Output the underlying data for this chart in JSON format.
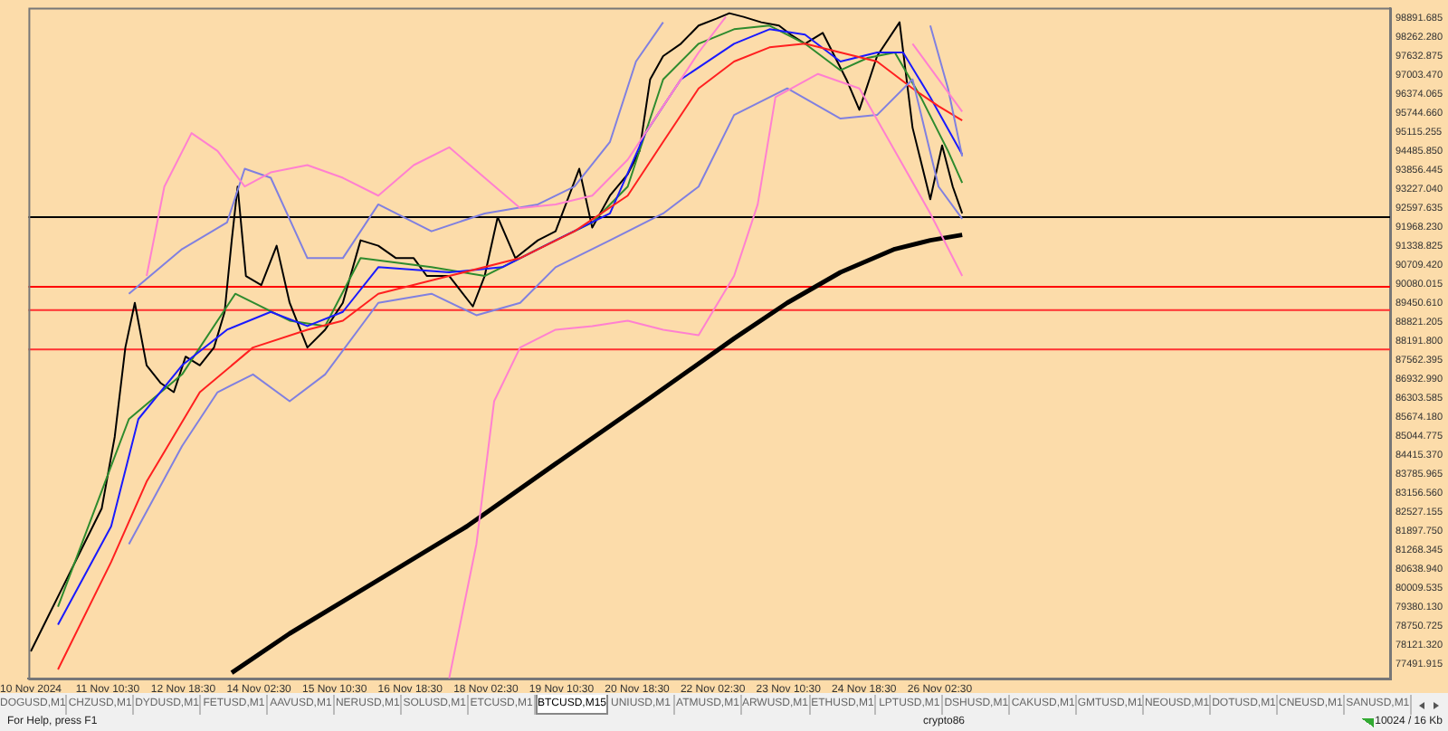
{
  "chart_data": {
    "type": "line",
    "xlim": [
      "2024-11-10T01:00",
      "2024-12-04T01:00"
    ],
    "ylim": [
      77010,
      99220
    ],
    "xticks": [
      {
        "value": "2024-11-10T02:00",
        "label": "10 Nov 2024"
      },
      {
        "value": "2024-11-11T10:30",
        "label": "11 Nov 10:30"
      },
      {
        "value": "2024-11-12T18:30",
        "label": "12 Nov 18:30"
      },
      {
        "value": "2024-11-14T02:30",
        "label": "14 Nov 02:30"
      },
      {
        "value": "2024-11-15T10:30",
        "label": "15 Nov 10:30"
      },
      {
        "value": "2024-11-16T18:30",
        "label": "16 Nov 18:30"
      },
      {
        "value": "2024-11-18T02:30",
        "label": "18 Nov 02:30"
      },
      {
        "value": "2024-11-19T10:30",
        "label": "19 Nov 10:30"
      },
      {
        "value": "2024-11-20T18:30",
        "label": "20 Nov 18:30"
      },
      {
        "value": "2024-11-22T02:30",
        "label": "22 Nov 02:30"
      },
      {
        "value": "2024-11-23T10:30",
        "label": "23 Nov 10:30"
      },
      {
        "value": "2024-11-24T18:30",
        "label": "24 Nov 18:30"
      },
      {
        "value": "2024-11-26T02:30",
        "label": "26 Nov 02:30"
      }
    ],
    "yticks": [
      77491.915,
      {
        "value": 78121.32,
        "label": "78121.320"
      },
      78750.725,
      {
        "value": 79380.13,
        "label": "79380.130"
      },
      80009.535,
      {
        "value": 80638.94,
        "label": "80638.940"
      },
      81268.345,
      {
        "value": 81897.75,
        "label": "81897.750"
      },
      82527.155,
      {
        "value": 83156.56,
        "label": "83156.560"
      },
      83785.965,
      {
        "value": 84415.37,
        "label": "84415.370"
      },
      85044.775,
      {
        "value": 85674.18,
        "label": "85674.180"
      },
      86303.585,
      {
        "value": 86932.99,
        "label": "86932.990"
      },
      87562.395,
      {
        "value": 88191.8,
        "label": "88191.800"
      },
      88821.205,
      {
        "value": 89450.61,
        "label": "89450.610"
      },
      90080.015,
      {
        "value": 90709.42,
        "label": "90709.420"
      },
      91338.825,
      {
        "value": 91968.23,
        "label": "91968.230"
      },
      92597.635,
      {
        "value": 93227.04,
        "label": "93227.040"
      },
      93856.445,
      {
        "value": 94485.85,
        "label": "94485.850"
      },
      95115.255,
      {
        "value": 95744.66,
        "label": "95744.660"
      },
      96374.065,
      {
        "value": 97003.47,
        "label": "97003.470"
      },
      97632.875,
      {
        "value": 98262.28,
        "label": "98262.280"
      },
      98891.685
    ],
    "grid": false,
    "legend": false,
    "marker": "none",
    "line_style": "solid",
    "series": [
      {
        "color": "#ff80d0",
        "x": [
          "2024-11-12T03:00",
          "2024-11-12T10:30",
          "2024-11-12T22:00",
          "2024-11-13T09:00",
          "2024-11-13T20:30",
          "2024-11-14T07:30",
          "2024-11-14T23:00",
          "2024-11-15T14:00",
          "2024-11-16T05:00",
          "2024-11-16T20:00",
          "2024-11-17T11:00",
          "2024-11-18T02:00",
          "2024-11-18T17:00",
          "2024-11-19T08:00",
          "2024-11-19T23:30",
          "2024-11-20T14:30",
          "2024-11-21T05:30",
          "2024-11-21T20:30",
          "2024-11-22T08:00",
          "2024-11-24T04:00",
          "2024-11-25T15:00",
          "2024-11-26T02:00",
          "2024-11-26T12:00"
        ],
        "values": [
          90340,
          93300,
          95070,
          94480,
          93300,
          93770,
          94010,
          93590,
          93000,
          94010,
          94600,
          93590,
          92590,
          92710,
          93000,
          94190,
          95960,
          97740,
          98920,
          null,
          98030,
          96850,
          95780
        ]
      },
      {
        "color": "#ff80d0",
        "x": [
          "2024-11-17T11:00",
          "2024-11-17T22:30",
          "2024-11-18T06:00",
          "2024-11-18T17:00",
          "2024-11-19T08:00",
          "2024-11-19T23:30",
          "2024-11-20T14:30",
          "2024-11-21T05:30",
          "2024-11-21T20:30",
          "2024-11-22T11:30",
          "2024-11-22T21:30",
          "2024-11-23T05:00",
          "2024-11-23T23:00",
          "2024-11-24T16:30",
          "2024-11-25T07:30",
          "2024-11-25T22:30",
          "2024-11-26T12:00"
        ],
        "values": [
          77020,
          81460,
          86190,
          87970,
          88560,
          88680,
          88860,
          88560,
          88380,
          90340,
          92710,
          96260,
          97030,
          96550,
          94480,
          92410,
          90340
        ]
      },
      {
        "color": "#8080e0",
        "x": [
          "2024-11-11T19:30",
          "2024-11-12T18:00",
          "2024-11-13T13:00",
          "2024-11-13T20:30",
          "2024-11-14T07:30",
          "2024-11-14T23:00",
          "2024-11-15T14:00",
          "2024-11-16T05:00",
          "2024-11-17T03:30",
          "2024-11-18T02:00",
          "2024-11-19T00:30",
          "2024-11-19T16:00",
          "2024-11-20T07:00",
          "2024-11-20T18:00",
          "2024-11-21T05:30",
          "2024-11-23T18:00",
          "2024-11-25T22:30",
          "2024-11-26T06:00",
          "2024-11-26T12:00"
        ],
        "values": [
          89750,
          91230,
          92110,
          93890,
          93590,
          90930,
          90930,
          92710,
          91820,
          92410,
          92710,
          93300,
          94780,
          97440,
          98740,
          null,
          98630,
          96550,
          94300
        ]
      },
      {
        "color": "#8080e0",
        "x": [
          "2024-11-11T19:30",
          "2024-11-12T18:00",
          "2024-11-13T09:00",
          "2024-11-14T00:00",
          "2024-11-14T15:30",
          "2024-11-15T06:30",
          "2024-11-16T05:00",
          "2024-11-17T03:30",
          "2024-11-17T22:30",
          "2024-11-18T17:00",
          "2024-11-19T08:00",
          "2024-11-20T07:00",
          "2024-11-21T05:30",
          "2024-11-21T20:30",
          "2024-11-22T11:30",
          "2024-11-23T10:00",
          "2024-11-24T08:30",
          "2024-11-25T00:00",
          "2024-11-25T15:00",
          "2024-11-26T02:00",
          "2024-11-26T12:00"
        ],
        "values": [
          81460,
          84710,
          86490,
          87080,
          86190,
          87080,
          89450,
          89750,
          89040,
          89450,
          90630,
          91520,
          92410,
          93300,
          95670,
          96550,
          95550,
          95670,
          96850,
          93300,
          92230
        ]
      },
      {
        "color": "#ff2020",
        "x": [
          "2024-11-10T13:30",
          "2024-11-11T12:00",
          "2024-11-12T03:00",
          "2024-11-13T01:30",
          "2024-11-14T00:00",
          "2024-11-14T23:00",
          "2024-11-15T14:00",
          "2024-11-16T05:00",
          "2024-11-17T11:00",
          "2024-11-18T17:00",
          "2024-11-19T16:00",
          "2024-11-20T14:30",
          "2024-11-21T05:30",
          "2024-11-21T20:30",
          "2024-11-22T11:30",
          "2024-11-23T02:30",
          "2024-11-23T17:30",
          "2024-11-24T08:30",
          "2024-11-25T00:00",
          "2024-11-25T15:00",
          "2024-11-26T02:00",
          "2024-11-26T12:00"
        ],
        "values": [
          77310,
          80870,
          83530,
          86490,
          87970,
          88560,
          88860,
          89750,
          90340,
          90930,
          91820,
          93000,
          94780,
          96550,
          97440,
          97910,
          98030,
          97740,
          97440,
          96550,
          95960,
          95490
        ]
      },
      {
        "color": "#1a1aff",
        "x": [
          "2024-11-10T13:30",
          "2024-11-11T12:00",
          "2024-11-11T23:30",
          "2024-11-12T18:00",
          "2024-11-13T13:00",
          "2024-11-14T07:30",
          "2024-11-14T23:00",
          "2024-11-15T14:00",
          "2024-11-16T05:00",
          "2024-11-17T11:00",
          "2024-11-18T09:30",
          "2024-11-19T08:00",
          "2024-11-20T07:00",
          "2024-11-20T22:00",
          "2024-11-21T13:00",
          "2024-11-22T11:30",
          "2024-11-23T02:30",
          "2024-11-23T17:30",
          "2024-11-24T08:30",
          "2024-11-25T00:00",
          "2024-11-25T11:00",
          "2024-11-25T22:30",
          "2024-11-26T12:00"
        ],
        "values": [
          78790,
          82050,
          85600,
          87380,
          88560,
          89150,
          88680,
          89150,
          90630,
          90460,
          90630,
          91520,
          92410,
          95070,
          96850,
          98030,
          98510,
          98330,
          97440,
          97740,
          97740,
          96260,
          94360
        ]
      },
      {
        "color": "#2e8b2e",
        "x": [
          "2024-11-10T13:30",
          "2024-11-11T19:30",
          "2024-11-12T18:00",
          "2024-11-13T16:30",
          "2024-11-14T15:30",
          "2024-11-15T06:30",
          "2024-11-15T21:30",
          "2024-11-17T03:30",
          "2024-11-18T02:00",
          "2024-11-19T00:30",
          "2024-11-19T23:30",
          "2024-11-20T14:30",
          "2024-11-21T05:30",
          "2024-11-21T20:30",
          "2024-11-22T11:30",
          "2024-11-23T02:30",
          "2024-11-23T17:30",
          "2024-11-24T08:30",
          "2024-11-24T20:00",
          "2024-11-25T07:30",
          "2024-11-25T18:30",
          "2024-11-26T06:00",
          "2024-11-26T12:00"
        ],
        "values": [
          79390,
          85600,
          87080,
          89750,
          88860,
          88680,
          90930,
          90630,
          90340,
          91230,
          92110,
          93300,
          96850,
          98030,
          98510,
          98630,
          98030,
          97150,
          97560,
          97740,
          96260,
          94480,
          93420
        ]
      },
      {
        "color": "#000000",
        "x": [
          "2024-11-10T02:00",
          "2024-11-10T09:30",
          "2024-11-10T17:00",
          "2024-11-11T00:30",
          "2024-11-11T08:00",
          "2024-11-11T13:30",
          "2024-11-11T18:00",
          "2024-11-11T22:00",
          "2024-11-12T03:00",
          "2024-11-12T09:00",
          "2024-11-12T14:30",
          "2024-11-12T19:30",
          "2024-11-13T01:30",
          "2024-11-13T07:30",
          "2024-11-13T12:00",
          "2024-11-13T15:00",
          "2024-11-13T17:30",
          "2024-11-13T21:00",
          "2024-11-14T03:30",
          "2024-11-14T10:00",
          "2024-11-14T15:30",
          "2024-11-14T23:00",
          "2024-11-15T06:30",
          "2024-11-15T14:00",
          "2024-11-15T21:30",
          "2024-11-16T05:00",
          "2024-11-16T12:30",
          "2024-11-16T20:00",
          "2024-11-17T01:30",
          "2024-11-17T11:00",
          "2024-11-17T21:00",
          "2024-11-18T02:00",
          "2024-11-18T07:30",
          "2024-11-18T15:00",
          "2024-11-19T00:30",
          "2024-11-19T08:00",
          "2024-11-19T18:00",
          "2024-11-19T23:30",
          "2024-11-20T07:00",
          "2024-11-20T14:30",
          "2024-11-20T19:30",
          "2024-11-21T00:00",
          "2024-11-21T05:30",
          "2024-11-21T13:00",
          "2024-11-21T20:30",
          "2024-11-22T04:00",
          "2024-11-22T09:30",
          "2024-11-22T15:30",
          "2024-11-22T23:00",
          "2024-11-23T06:30",
          "2024-11-23T11:30",
          "2024-11-23T17:30",
          "2024-11-24T01:00",
          "2024-11-24T11:00",
          "2024-11-24T16:30",
          "2024-11-25T00:00",
          "2024-11-25T09:30",
          "2024-11-25T15:00",
          "2024-11-25T22:30",
          "2024-11-26T03:30",
          "2024-11-26T08:00",
          "2024-11-26T12:00"
        ],
        "values": [
          77910,
          79090,
          80270,
          81460,
          82640,
          85010,
          87970,
          89450,
          87380,
          86790,
          86490,
          87670,
          87380,
          87970,
          89150,
          91520,
          93300,
          90340,
          90040,
          91340,
          89450,
          87970,
          88560,
          89450,
          91520,
          91340,
          90930,
          90930,
          90340,
          90340,
          89330,
          90340,
          92290,
          90930,
          91520,
          91820,
          93890,
          91940,
          93000,
          93710,
          94480,
          96850,
          97620,
          98030,
          98630,
          98860,
          99040,
          98920,
          98740,
          98630,
          98330,
          98030,
          98390,
          96850,
          95840,
          97620,
          98740,
          95250,
          92880,
          94660,
          93300,
          92410
        ]
      },
      {
        "color": "#000000",
        "x": [
          "2024-11-13T15:00",
          "2024-11-14T15:30",
          "2024-11-16T05:00",
          "2024-11-17T18:30",
          "2024-11-19T08:00",
          "2024-11-20T22:00",
          "2024-11-22T11:30",
          "2024-11-23T10:00",
          "2024-11-24T08:30",
          "2024-11-25T07:30",
          "2024-11-25T22:30",
          "2024-11-26T12:00"
        ],
        "values": [
          77200,
          78500,
          80270,
          82050,
          84120,
          86190,
          88270,
          89450,
          90460,
          91230,
          91520,
          91700
        ]
      }
    ],
    "ref_lines": [
      {
        "axis": "y",
        "value": 92290,
        "color": "#000000"
      },
      {
        "axis": "y",
        "value": 89980,
        "color": "#ff0000"
      },
      {
        "axis": "y",
        "value": 89210,
        "color": "#ff3030"
      },
      {
        "axis": "y",
        "value": 87910,
        "color": "#ff3030"
      }
    ],
    "annotations": [
      "DOGUSD,M1",
      "CHZUSD,M1",
      "DYDUSD,M1",
      "FETUSD,M1",
      "AAVUSD,M1",
      "NERUSD,M1",
      "SOLUSD,M1",
      "ETCUSD,M1",
      "BTCUSD,M15",
      "UNIUSD,M1",
      "ATMUSD,M1",
      "ARWUSD,M1",
      "ETHUSD,M1",
      "LPTUSD,M1",
      "DSHUSD,M1",
      "CAKUSD,M1",
      "GMTUSD,M1",
      "NEOUSD,M1",
      "DOTUSD,M1",
      "CNEUSD,M1",
      "SANUSD,M1",
      "For Help, press F1",
      "crypto86",
      "10024 / 16 Kb"
    ]
  }
}
